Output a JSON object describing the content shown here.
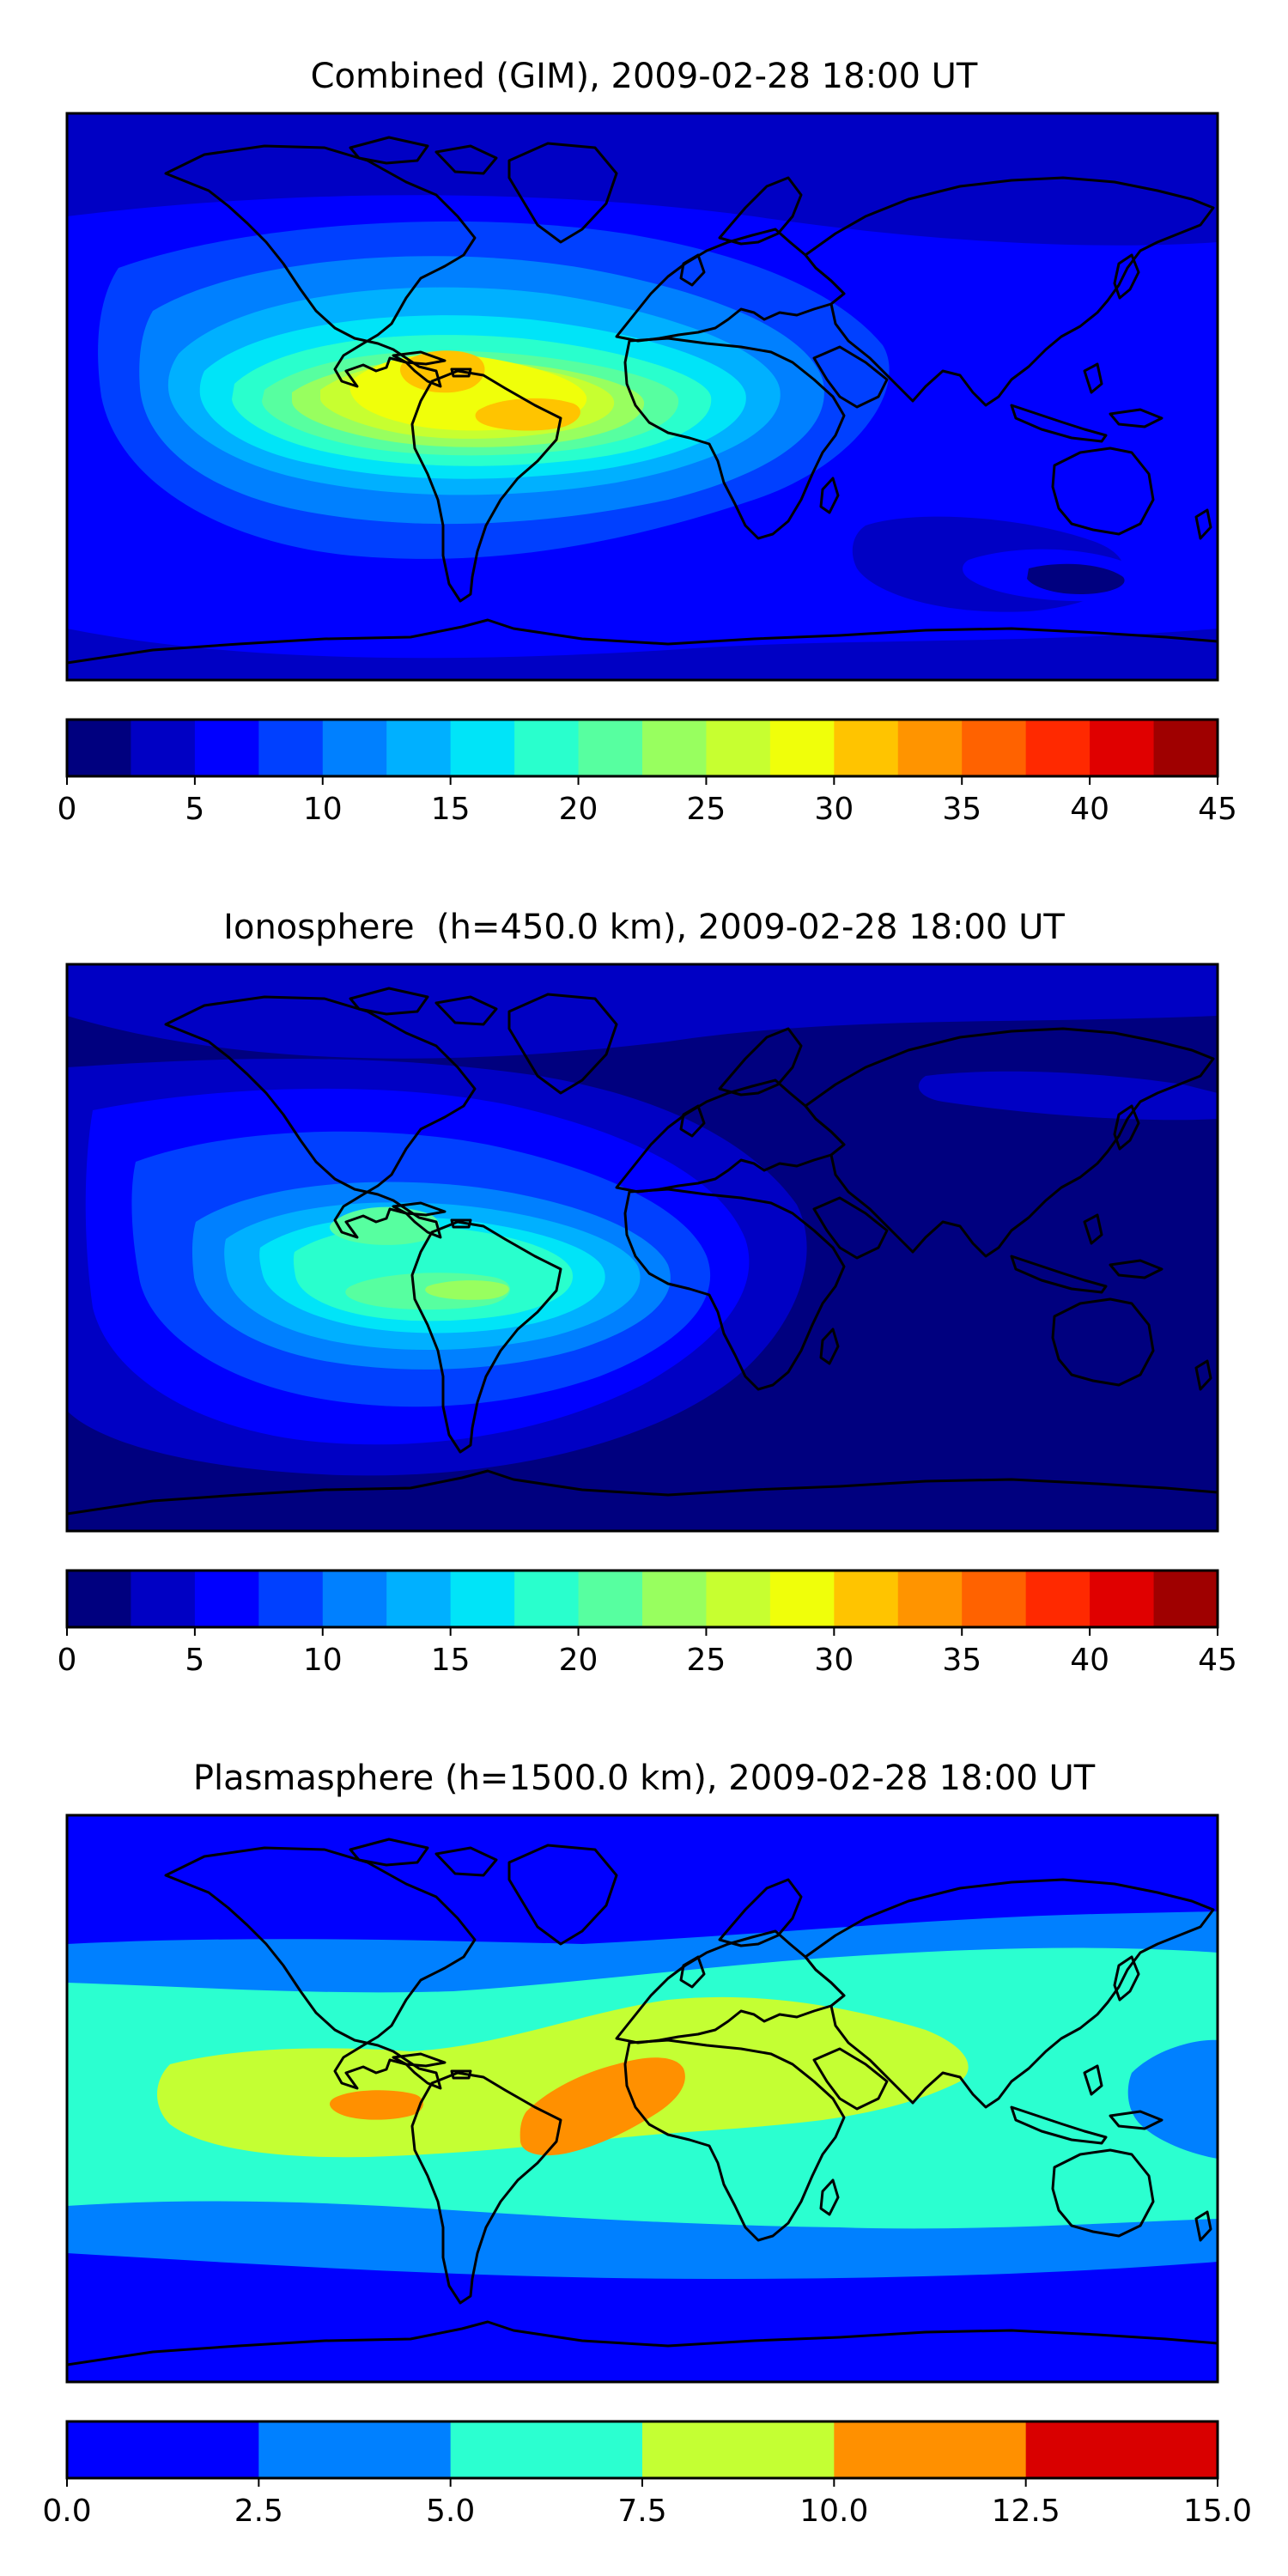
{
  "chart_data": [
    {
      "type": "heatmap",
      "title": "Combined (GIM), 2009-02-28 18:00 UT",
      "xlabel": "",
      "ylabel": "",
      "colorbar": {
        "ticks": [
          "0",
          "5",
          "10",
          "15",
          "20",
          "25",
          "30",
          "35",
          "40",
          "45"
        ],
        "range": [
          0,
          45
        ],
        "levels": [
          0,
          2.5,
          5,
          7.5,
          10,
          12.5,
          15,
          17.5,
          20,
          22.5,
          25,
          27.5,
          30,
          32.5,
          35,
          37.5,
          40,
          42.5,
          45
        ],
        "colors": [
          "#00007f",
          "#0000c4",
          "#0000ff",
          "#0040ff",
          "#0080ff",
          "#00b0ff",
          "#00e4f8",
          "#29ffcd",
          "#57ffa0",
          "#98ff5f",
          "#c7ff30",
          "#f0ff0a",
          "#ffc400",
          "#ff9400",
          "#ff6200",
          "#ff2900",
          "#e00000",
          "#9f0000"
        ]
      },
      "peak_region": "South America",
      "peak_value_approx": 31
    },
    {
      "type": "heatmap",
      "title": "Ionosphere  (h=450.0 km), 2009-02-28 18:00 UT",
      "xlabel": "",
      "ylabel": "",
      "colorbar": {
        "ticks": [
          "0",
          "5",
          "10",
          "15",
          "20",
          "25",
          "30",
          "35",
          "40",
          "45"
        ],
        "range": [
          0,
          45
        ],
        "levels": [
          0,
          2.5,
          5,
          7.5,
          10,
          12.5,
          15,
          17.5,
          20,
          22.5,
          25,
          27.5,
          30,
          32.5,
          35,
          37.5,
          40,
          42.5,
          45
        ],
        "colors": [
          "#00007f",
          "#0000c4",
          "#0000ff",
          "#0040ff",
          "#0080ff",
          "#00b0ff",
          "#00e4f8",
          "#29ffcd",
          "#57ffa0",
          "#98ff5f",
          "#c7ff30",
          "#f0ff0a",
          "#ffc400",
          "#ff9400",
          "#ff6200",
          "#ff2900",
          "#e00000",
          "#9f0000"
        ]
      },
      "peak_region": "South America",
      "peak_value_approx": 24
    },
    {
      "type": "heatmap",
      "title": "Plasmasphere (h=1500.0 km), 2009-02-28 18:00 UT",
      "xlabel": "",
      "ylabel": "",
      "colorbar": {
        "ticks": [
          "0.0",
          "2.5",
          "5.0",
          "7.5",
          "10.0",
          "12.5",
          "15.0"
        ],
        "range": [
          0,
          15
        ],
        "levels": [
          0,
          2.5,
          5,
          7.5,
          10,
          12.5,
          15
        ],
        "colors": [
          "#0000ff",
          "#0080ff",
          "#2bffd0",
          "#c4ff33",
          "#ff9000",
          "#d90000"
        ]
      },
      "peak_region": "Equatorial Atlantic / Africa",
      "peak_value_approx": 11
    }
  ]
}
